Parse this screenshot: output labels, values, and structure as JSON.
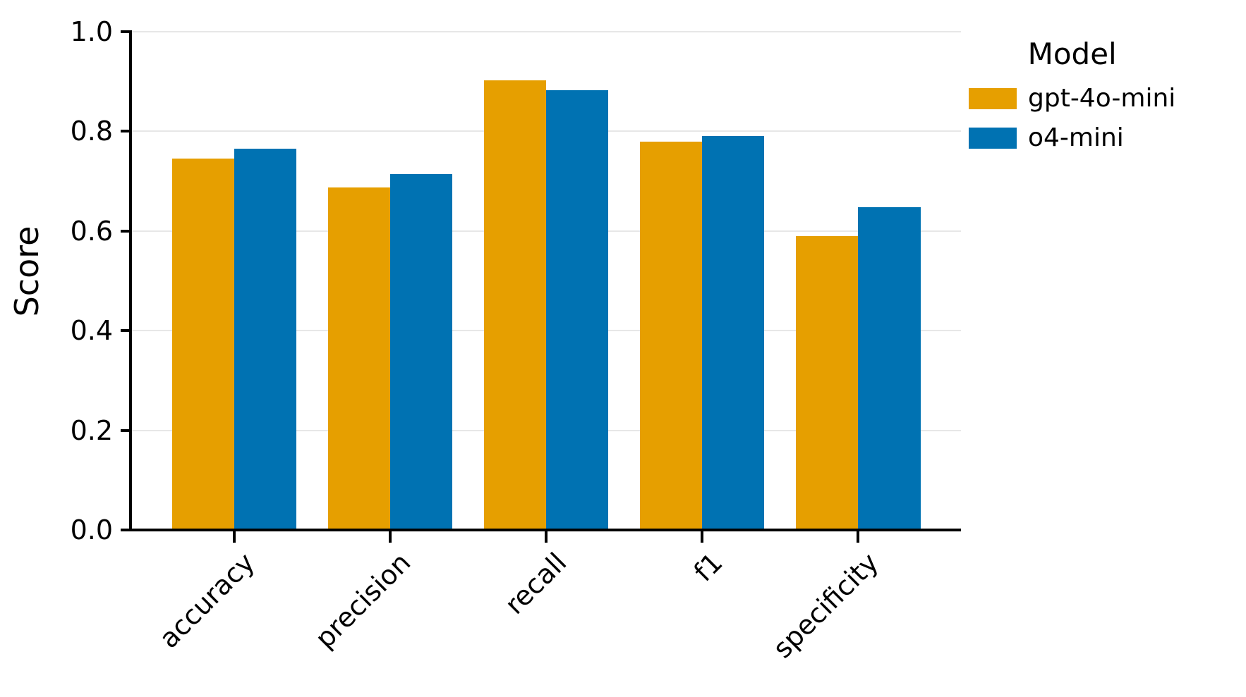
{
  "figure": {
    "background": "#ffffff"
  },
  "chart_data": {
    "type": "bar",
    "title": "",
    "xlabel": "",
    "ylabel": "Score",
    "categories": [
      "accuracy",
      "precision",
      "recall",
      "f1",
      "specificity"
    ],
    "series": [
      {
        "name": "gpt-4o-mini",
        "color": "#E69F00",
        "values": [
          0.745,
          0.687,
          0.902,
          0.78,
          0.59
        ]
      },
      {
        "name": "o4-mini",
        "color": "#0072B2",
        "values": [
          0.765,
          0.714,
          0.883,
          0.79,
          0.648
        ]
      }
    ],
    "ylim": [
      0,
      1.0
    ],
    "yticks": [
      0.0,
      0.2,
      0.4,
      0.6,
      0.8,
      1.0
    ],
    "ytick_labels": [
      "0.0",
      "0.2",
      "0.4",
      "0.6",
      "0.8",
      "1.0"
    ],
    "xlim": [
      -0.665,
      4.66
    ],
    "bar_width": 0.4,
    "grid": "horizontal",
    "legend_title": "Model",
    "legend_position": "upper-right-outside"
  },
  "colors": {
    "grid": "#e7e7e7",
    "axis": "#000000",
    "text": "#000000"
  }
}
